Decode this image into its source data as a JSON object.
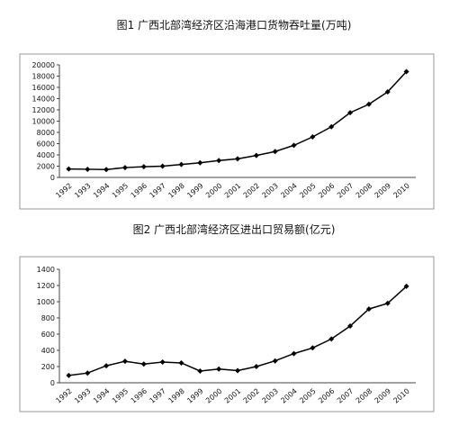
{
  "chart_data": [
    {
      "type": "line",
      "title": "图1 广西北部湾经济区沿海港口货物吞吐量(万吨)",
      "categories": [
        "1992",
        "1993",
        "1994",
        "1995",
        "1996",
        "1997",
        "1998",
        "1999",
        "2000",
        "2001",
        "2002",
        "2003",
        "2004",
        "2005",
        "2006",
        "2007",
        "2008",
        "2009",
        "2010"
      ],
      "values": [
        1500,
        1450,
        1400,
        1750,
        1900,
        2000,
        2300,
        2600,
        3000,
        3300,
        3900,
        4600,
        5700,
        7200,
        9000,
        11500,
        13000,
        15200,
        18800
      ],
      "color": "#000000",
      "ylim": [
        0,
        20000
      ],
      "yticks": [
        0,
        2000,
        4000,
        6000,
        8000,
        10000,
        12000,
        14000,
        16000,
        18000,
        20000
      ]
    },
    {
      "type": "line",
      "title": "图2 广西北部湾经济区进出口贸易额(亿元)",
      "categories": [
        "1992",
        "1993",
        "1994",
        "1995",
        "1996",
        "1997",
        "1998",
        "1999",
        "2000",
        "2001",
        "2002",
        "2003",
        "2004",
        "2005",
        "2006",
        "2007",
        "2008",
        "2009",
        "2010"
      ],
      "values": [
        90,
        120,
        210,
        265,
        230,
        255,
        245,
        145,
        170,
        150,
        200,
        270,
        360,
        430,
        540,
        700,
        910,
        980,
        1190
      ],
      "color": "#000000",
      "ylim": [
        0,
        1400
      ],
      "yticks": [
        0,
        200,
        400,
        600,
        800,
        1000,
        1200,
        1400
      ]
    }
  ]
}
